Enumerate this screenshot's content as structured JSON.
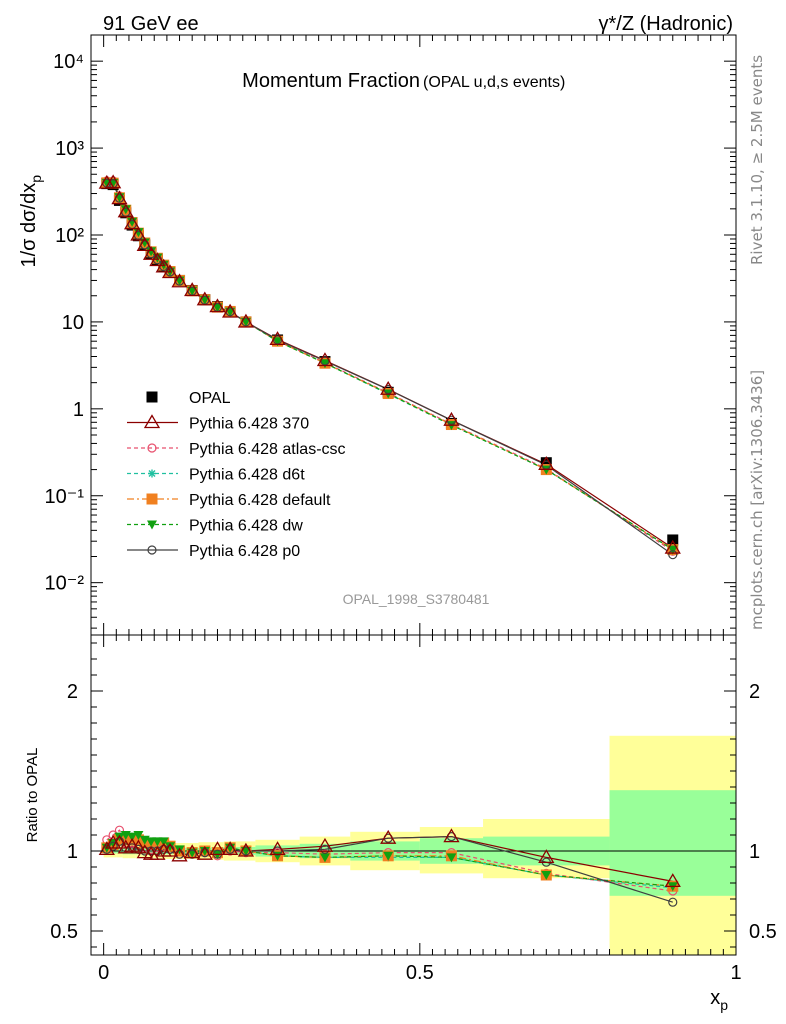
{
  "header": {
    "left": "91 GeV ee",
    "right": "γ*/Z (Hadronic)"
  },
  "side_labels": {
    "rivet": "Rivet 3.1.10, ≥ 2.5M events",
    "mcplots": "mcplots.cern.ch [arXiv:1306.3436]"
  },
  "chart_data": [
    {
      "type": "scatter",
      "title": "Momentum Fraction",
      "subtitle": "(OPAL u,d,s events)",
      "ylabel": "1/σ dσ/dx_p",
      "ylabel_main": "1/σ dσ/dx",
      "ylabel_sub": "p",
      "watermark": "OPAL_1998_S3780481",
      "y_scale": "log",
      "ylim": [
        0.0025,
        20000
      ],
      "xlim": [
        -0.02,
        1.0
      ],
      "y_ticks": [
        "10⁻²",
        "10⁻¹",
        "1",
        "10",
        "10²",
        "10³",
        "10⁴"
      ],
      "legend_position": "lower-left",
      "series": [
        {
          "name": "OPAL",
          "color": "#000000",
          "marker": "square-filled",
          "line": "none",
          "x": [
            0.005,
            0.015,
            0.025,
            0.035,
            0.045,
            0.055,
            0.065,
            0.075,
            0.085,
            0.095,
            0.105,
            0.12,
            0.14,
            0.16,
            0.18,
            0.2,
            0.225,
            0.275,
            0.35,
            0.45,
            0.55,
            0.7,
            0.9
          ],
          "y": [
            390,
            380,
            250,
            180,
            130,
            98,
            77,
            61,
            52,
            43,
            37,
            30,
            23,
            18,
            15,
            13,
            10,
            6.2,
            3.5,
            1.55,
            0.68,
            0.24,
            0.031
          ]
        },
        {
          "name": "Pythia 6.428 370",
          "color": "#8b0000",
          "marker": "triangle-open",
          "line": "solid",
          "x": [
            0.005,
            0.015,
            0.025,
            0.035,
            0.045,
            0.055,
            0.065,
            0.075,
            0.085,
            0.095,
            0.105,
            0.12,
            0.14,
            0.16,
            0.18,
            0.2,
            0.225,
            0.275,
            0.35,
            0.45,
            0.55,
            0.7,
            0.9
          ],
          "y": [
            395,
            400,
            262,
            185,
            135,
            100,
            76,
            60,
            51,
            43,
            37,
            29,
            23,
            18,
            15,
            13,
            10,
            6.3,
            3.6,
            1.68,
            0.74,
            0.23,
            0.025
          ]
        },
        {
          "name": "Pythia 6.428 atlas-csc",
          "color": "#e8506e",
          "marker": "circle-open",
          "line": "dashed",
          "x": [
            0.005,
            0.015,
            0.025,
            0.035,
            0.045,
            0.055,
            0.065,
            0.075,
            0.085,
            0.095,
            0.105,
            0.12,
            0.14,
            0.16,
            0.18,
            0.2,
            0.225,
            0.275,
            0.35,
            0.45,
            0.55,
            0.7,
            0.9
          ],
          "y": [
            420,
            420,
            282,
            190,
            137,
            104,
            79,
            62,
            53,
            44,
            38,
            29.5,
            22.6,
            17.8,
            14.6,
            13.1,
            10,
            6.1,
            3.4,
            1.53,
            0.67,
            0.205,
            0.023
          ]
        },
        {
          "name": "Pythia 6.428 d6t",
          "color": "#20c0a0",
          "marker": "star",
          "line": "dashed",
          "x": [
            0.005,
            0.015,
            0.025,
            0.035,
            0.045,
            0.055,
            0.065,
            0.075,
            0.085,
            0.095,
            0.105,
            0.12,
            0.14,
            0.16,
            0.18,
            0.2,
            0.225,
            0.275,
            0.35,
            0.45,
            0.55,
            0.7,
            0.9
          ],
          "y": [
            400,
            400,
            270,
            195,
            140,
            106,
            82,
            64,
            54,
            45,
            38,
            30,
            22.7,
            18,
            14.7,
            13.1,
            10,
            6.0,
            3.35,
            1.48,
            0.65,
            0.2,
            0.024
          ]
        },
        {
          "name": "Pythia 6.428 default",
          "color": "#f08020",
          "marker": "square-filled",
          "line": "dashdot",
          "x": [
            0.005,
            0.015,
            0.025,
            0.035,
            0.045,
            0.055,
            0.065,
            0.075,
            0.085,
            0.095,
            0.105,
            0.12,
            0.14,
            0.16,
            0.18,
            0.2,
            0.225,
            0.275,
            0.35,
            0.45,
            0.55,
            0.7,
            0.9
          ],
          "y": [
            398,
            395,
            268,
            193,
            139,
            105,
            81,
            64,
            54,
            45,
            38,
            30,
            22.8,
            18,
            14.8,
            13.2,
            10,
            6.0,
            3.35,
            1.5,
            0.66,
            0.2,
            0.024
          ]
        },
        {
          "name": "Pythia 6.428 dw",
          "color": "#10a010",
          "marker": "triangle-down-filled",
          "line": "dashed",
          "x": [
            0.005,
            0.015,
            0.025,
            0.035,
            0.045,
            0.055,
            0.065,
            0.075,
            0.085,
            0.095,
            0.105,
            0.12,
            0.14,
            0.16,
            0.18,
            0.2,
            0.225,
            0.275,
            0.35,
            0.45,
            0.55,
            0.7,
            0.9
          ],
          "y": [
            398,
            398,
            272,
            198,
            142,
            108,
            82,
            65,
            55,
            45.5,
            38,
            30,
            22.8,
            18,
            14.7,
            13.1,
            10,
            6.0,
            3.35,
            1.5,
            0.65,
            0.2,
            0.024
          ]
        },
        {
          "name": "Pythia 6.428 p0",
          "color": "#404040",
          "marker": "circle-open",
          "line": "solid",
          "x": [
            0.005,
            0.015,
            0.025,
            0.035,
            0.045,
            0.055,
            0.065,
            0.075,
            0.085,
            0.095,
            0.105,
            0.12,
            0.14,
            0.16,
            0.18,
            0.2,
            0.225,
            0.275,
            0.35,
            0.45,
            0.55,
            0.7,
            0.9
          ],
          "y": [
            395,
            390,
            265,
            183,
            132,
            99,
            77,
            61,
            52,
            43.5,
            37.5,
            29.5,
            22.6,
            17.8,
            14.7,
            13.1,
            10,
            6.2,
            3.55,
            1.67,
            0.74,
            0.225,
            0.021
          ]
        }
      ]
    },
    {
      "type": "line",
      "ylabel": "Ratio to OPAL",
      "xlabel": "x_p",
      "xlabel_main": "x",
      "xlabel_sub": "p",
      "xlim": [
        -0.02,
        1.0
      ],
      "ylim": [
        0.35,
        2.35
      ],
      "x_ticks": [
        "0",
        "0.5",
        "1"
      ],
      "y_ticks": [
        "0.5",
        "1",
        "2"
      ],
      "reference_line": 1,
      "bands": {
        "bin_edges": [
          0,
          0.01,
          0.02,
          0.03,
          0.04,
          0.05,
          0.06,
          0.07,
          0.08,
          0.09,
          0.1,
          0.11,
          0.13,
          0.15,
          0.17,
          0.19,
          0.21,
          0.24,
          0.31,
          0.39,
          0.5,
          0.6,
          0.8,
          1.0
        ],
        "inner_color": "#99ff99",
        "outer_color": "#ffff99",
        "inner": [
          [
            0.985,
            1.015
          ],
          [
            0.985,
            1.015
          ],
          [
            0.985,
            1.015
          ],
          [
            0.98,
            1.02
          ],
          [
            0.98,
            1.02
          ],
          [
            0.98,
            1.02
          ],
          [
            0.98,
            1.02
          ],
          [
            0.98,
            1.02
          ],
          [
            0.98,
            1.02
          ],
          [
            0.98,
            1.02
          ],
          [
            0.98,
            1.02
          ],
          [
            0.98,
            1.02
          ],
          [
            0.98,
            1.02
          ],
          [
            0.98,
            1.02
          ],
          [
            0.975,
            1.025
          ],
          [
            0.975,
            1.025
          ],
          [
            0.975,
            1.025
          ],
          [
            0.965,
            1.035
          ],
          [
            0.955,
            1.045
          ],
          [
            0.94,
            1.06
          ],
          [
            0.92,
            1.08
          ],
          [
            0.91,
            1.09
          ],
          [
            0.72,
            1.38
          ]
        ],
        "outer": [
          [
            0.96,
            1.04
          ],
          [
            0.96,
            1.04
          ],
          [
            0.96,
            1.04
          ],
          [
            0.955,
            1.045
          ],
          [
            0.955,
            1.045
          ],
          [
            0.955,
            1.045
          ],
          [
            0.955,
            1.045
          ],
          [
            0.955,
            1.045
          ],
          [
            0.955,
            1.045
          ],
          [
            0.95,
            1.05
          ],
          [
            0.95,
            1.05
          ],
          [
            0.95,
            1.05
          ],
          [
            0.95,
            1.05
          ],
          [
            0.945,
            1.055
          ],
          [
            0.945,
            1.055
          ],
          [
            0.94,
            1.06
          ],
          [
            0.94,
            1.06
          ],
          [
            0.93,
            1.07
          ],
          [
            0.91,
            1.09
          ],
          [
            0.88,
            1.12
          ],
          [
            0.86,
            1.15
          ],
          [
            0.83,
            1.2
          ],
          [
            0.35,
            1.72
          ]
        ]
      },
      "series": [
        {
          "name": "Pythia 6.428 370",
          "color": "#8b0000",
          "marker": "triangle-open",
          "line": "solid",
          "x": [
            0.005,
            0.015,
            0.025,
            0.035,
            0.045,
            0.055,
            0.065,
            0.075,
            0.085,
            0.095,
            0.105,
            0.12,
            0.14,
            0.16,
            0.18,
            0.2,
            0.225,
            0.275,
            0.35,
            0.45,
            0.55,
            0.7,
            0.9
          ],
          "y": [
            1.01,
            1.05,
            1.05,
            1.02,
            1.03,
            1.02,
            0.99,
            0.98,
            0.98,
            1.0,
            1.0,
            0.97,
            0.99,
            0.98,
            1.01,
            1.01,
            1.0,
            1.01,
            1.03,
            1.08,
            1.09,
            0.96,
            0.81
          ]
        },
        {
          "name": "Pythia 6.428 atlas-csc",
          "color": "#e8506e",
          "marker": "circle-open",
          "line": "dashed",
          "x": [
            0.005,
            0.015,
            0.025,
            0.035,
            0.045,
            0.055,
            0.065,
            0.075,
            0.085,
            0.095,
            0.105,
            0.12,
            0.14,
            0.16,
            0.18,
            0.2,
            0.225,
            0.275,
            0.35,
            0.45,
            0.55,
            0.7,
            0.9
          ],
          "y": [
            1.07,
            1.1,
            1.13,
            1.05,
            1.05,
            1.06,
            1.02,
            1.01,
            1.02,
            1.03,
            1.01,
            0.98,
            0.98,
            0.99,
            0.97,
            1.0,
            0.99,
            0.99,
            0.98,
            0.99,
            0.99,
            0.86,
            0.75
          ]
        },
        {
          "name": "Pythia 6.428 d6t",
          "color": "#20c0a0",
          "marker": "star",
          "line": "dashed",
          "x": [
            0.005,
            0.015,
            0.025,
            0.035,
            0.045,
            0.055,
            0.065,
            0.075,
            0.085,
            0.095,
            0.105,
            0.12,
            0.14,
            0.16,
            0.18,
            0.2,
            0.225,
            0.275,
            0.35,
            0.45,
            0.55,
            0.7,
            0.9
          ],
          "y": [
            1.02,
            1.05,
            1.08,
            1.08,
            1.08,
            1.08,
            1.06,
            1.05,
            1.04,
            1.05,
            1.03,
            1.0,
            0.99,
            1.0,
            0.98,
            1.01,
            1.0,
            0.97,
            0.96,
            0.96,
            0.96,
            0.85,
            0.77
          ]
        },
        {
          "name": "Pythia 6.428 default",
          "color": "#f08020",
          "marker": "square-filled",
          "line": "dashdot",
          "x": [
            0.005,
            0.015,
            0.025,
            0.035,
            0.045,
            0.055,
            0.065,
            0.075,
            0.085,
            0.095,
            0.105,
            0.12,
            0.14,
            0.16,
            0.18,
            0.2,
            0.225,
            0.275,
            0.35,
            0.45,
            0.55,
            0.7,
            0.9
          ],
          "y": [
            1.02,
            1.04,
            1.07,
            1.07,
            1.07,
            1.07,
            1.05,
            1.05,
            1.04,
            1.05,
            1.03,
            1.0,
            0.99,
            1.0,
            0.99,
            1.02,
            1.0,
            0.97,
            0.96,
            0.97,
            0.97,
            0.85,
            0.78
          ]
        },
        {
          "name": "Pythia 6.428 dw",
          "color": "#10a010",
          "marker": "triangle-down-filled",
          "line": "dashed",
          "x": [
            0.005,
            0.015,
            0.025,
            0.035,
            0.045,
            0.055,
            0.065,
            0.075,
            0.085,
            0.095,
            0.105,
            0.12,
            0.14,
            0.16,
            0.18,
            0.2,
            0.225,
            0.275,
            0.35,
            0.45,
            0.55,
            0.7,
            0.9
          ],
          "y": [
            1.02,
            1.05,
            1.09,
            1.1,
            1.09,
            1.1,
            1.07,
            1.06,
            1.06,
            1.06,
            1.03,
            1.01,
            0.99,
            1.0,
            0.98,
            1.02,
            1.0,
            0.97,
            0.96,
            0.97,
            0.96,
            0.85,
            0.78
          ]
        },
        {
          "name": "Pythia 6.428 p0",
          "color": "#404040",
          "marker": "circle-open",
          "line": "solid",
          "x": [
            0.005,
            0.015,
            0.025,
            0.035,
            0.045,
            0.055,
            0.065,
            0.075,
            0.085,
            0.095,
            0.105,
            0.12,
            0.14,
            0.16,
            0.18,
            0.2,
            0.225,
            0.275,
            0.35,
            0.45,
            0.55,
            0.7,
            0.9
          ],
          "y": [
            1.01,
            1.03,
            1.06,
            1.02,
            1.02,
            1.01,
            1.0,
            1.0,
            1.0,
            1.01,
            1.01,
            0.98,
            0.98,
            0.99,
            0.98,
            1.01,
            1.0,
            1.0,
            1.01,
            1.08,
            1.09,
            0.93,
            0.68
          ]
        }
      ]
    }
  ]
}
